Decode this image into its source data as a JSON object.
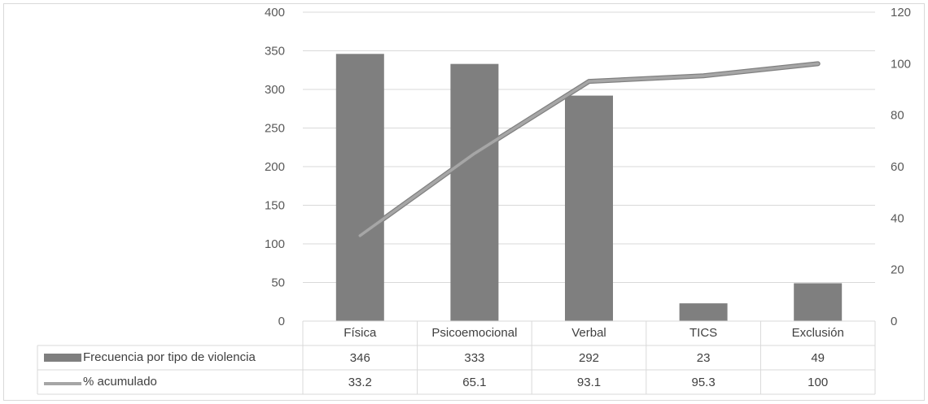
{
  "chart_data": {
    "type": "bar",
    "categories": [
      "Física",
      "Psicoemocional",
      "Verbal",
      "TICS",
      "Exclusión"
    ],
    "series": [
      {
        "name": "Frecuencia por tipo de violencia",
        "type": "bar",
        "axis": "left",
        "values": [
          346,
          333,
          292,
          23,
          49
        ],
        "color": "#7f7f7f"
      },
      {
        "name": "% acumulado",
        "type": "line",
        "axis": "right",
        "values": [
          33.2,
          65.1,
          93.1,
          95.3,
          100
        ],
        "color": "#a6a6a6"
      }
    ],
    "data_table": {
      "rows": [
        {
          "label": "Frecuencia por tipo de violencia",
          "values": [
            "346",
            "333",
            "292",
            "23",
            "49"
          ]
        },
        {
          "label": "% acumulado",
          "values": [
            "33.2",
            "65.1",
            "93.1",
            "95.3",
            "100"
          ]
        }
      ]
    },
    "ylim_left": [
      0,
      400
    ],
    "yticks_left": [
      "0",
      "50",
      "100",
      "150",
      "200",
      "250",
      "300",
      "350",
      "400"
    ],
    "ylim_right": [
      0,
      120
    ],
    "yticks_right": [
      "0",
      "20",
      "40",
      "60",
      "80",
      "100",
      "120"
    ],
    "grid": true,
    "legend": "data-table"
  }
}
